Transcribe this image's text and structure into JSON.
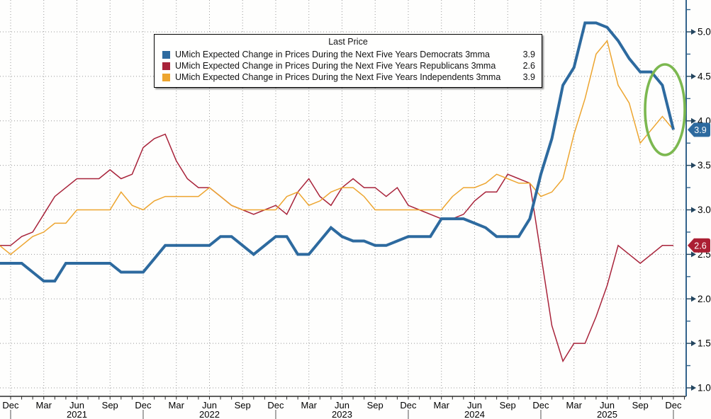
{
  "chart_data": {
    "type": "line",
    "legend_title": "Last Price",
    "months": [
      "Nov 2020",
      "Dec 2020",
      "Jan 2021",
      "Feb 2021",
      "Mar 2021",
      "Apr 2021",
      "May 2021",
      "Jun 2021",
      "Jul 2021",
      "Aug 2021",
      "Sep 2021",
      "Oct 2021",
      "Nov 2021",
      "Dec 2021",
      "Jan 2022",
      "Feb 2022",
      "Mar 2022",
      "Apr 2022",
      "May 2022",
      "Jun 2022",
      "Jul 2022",
      "Aug 2022",
      "Sep 2022",
      "Oct 2022",
      "Nov 2022",
      "Dec 2022",
      "Jan 2023",
      "Feb 2023",
      "Mar 2023",
      "Apr 2023",
      "May 2023",
      "Jun 2023",
      "Jul 2023",
      "Aug 2023",
      "Sep 2023",
      "Oct 2023",
      "Nov 2023",
      "Dec 2023",
      "Jan 2024",
      "Feb 2024",
      "Mar 2024",
      "Apr 2024",
      "May 2024",
      "Jun 2024",
      "Jul 2024",
      "Aug 2024",
      "Sep 2024",
      "Oct 2024",
      "Nov 2024",
      "Dec 2024",
      "Jan 2025",
      "Feb 2025",
      "Mar 2025",
      "Apr 2025",
      "May 2025",
      "Jun 2025",
      "Jul 2025",
      "Aug 2025",
      "Sep 2025",
      "Oct 2025",
      "Nov 2025",
      "Dec 2025"
    ],
    "series": [
      {
        "name": "UMich Expected Change in Prices During the Next Five Years Democrats 3mma",
        "last_price": "3.9",
        "color": "#2d6a9f",
        "line_width": 4,
        "values": [
          2.4,
          2.4,
          2.4,
          2.3,
          2.2,
          2.2,
          2.4,
          2.4,
          2.4,
          2.4,
          2.4,
          2.3,
          2.3,
          2.3,
          2.45,
          2.6,
          2.6,
          2.6,
          2.6,
          2.6,
          2.7,
          2.7,
          2.6,
          2.5,
          2.6,
          2.7,
          2.7,
          2.5,
          2.5,
          2.65,
          2.8,
          2.7,
          2.65,
          2.65,
          2.6,
          2.6,
          2.65,
          2.7,
          2.7,
          2.7,
          2.9,
          2.9,
          2.9,
          2.85,
          2.8,
          2.7,
          2.7,
          2.7,
          2.9,
          3.4,
          3.8,
          4.4,
          4.6,
          5.1,
          5.1,
          5.05,
          4.9,
          4.7,
          4.55,
          4.55,
          4.4,
          3.9
        ]
      },
      {
        "name": "UMich Expected Change in Prices During the Next Five Years Republicans 3mma",
        "last_price": "2.6",
        "color": "#a8233a",
        "line_width": 1.5,
        "values": [
          2.6,
          2.6,
          2.7,
          2.75,
          2.95,
          3.15,
          3.25,
          3.35,
          3.35,
          3.35,
          3.45,
          3.35,
          3.4,
          3.7,
          3.8,
          3.85,
          3.55,
          3.35,
          3.25,
          3.25,
          3.15,
          3.05,
          3.0,
          2.95,
          3.0,
          3.05,
          2.95,
          3.2,
          3.35,
          3.15,
          3.05,
          3.25,
          3.35,
          3.25,
          3.25,
          3.15,
          3.25,
          3.05,
          3.0,
          2.95,
          2.9,
          2.9,
          2.95,
          3.1,
          3.2,
          3.2,
          3.4,
          3.35,
          3.3,
          2.5,
          1.7,
          1.3,
          1.5,
          1.5,
          1.8,
          2.15,
          2.6,
          2.5,
          2.4,
          2.5,
          2.6,
          2.6
        ]
      },
      {
        "name": "UMich Expected Change in Prices During the Next Five Years Independents 3mma",
        "last_price": "3.9",
        "color": "#eda52f",
        "line_width": 1.5,
        "values": [
          2.6,
          2.5,
          2.6,
          2.7,
          2.75,
          2.85,
          2.85,
          3.0,
          3.0,
          3.0,
          3.0,
          3.2,
          3.05,
          3.0,
          3.1,
          3.15,
          3.15,
          3.15,
          3.15,
          3.25,
          3.15,
          3.05,
          3.0,
          3.0,
          3.0,
          3.0,
          3.15,
          3.2,
          3.05,
          3.1,
          3.2,
          3.25,
          3.25,
          3.15,
          3.0,
          3.0,
          3.0,
          3.0,
          3.0,
          3.0,
          3.0,
          3.15,
          3.25,
          3.25,
          3.3,
          3.4,
          3.35,
          3.3,
          3.3,
          3.15,
          3.2,
          3.35,
          3.85,
          4.25,
          4.75,
          4.9,
          4.4,
          4.2,
          3.75,
          3.9,
          4.05,
          3.9
        ]
      }
    ],
    "y_axis": {
      "side": "right",
      "ticks": [
        "1.0",
        "1.5",
        "2.0",
        "2.5",
        "3.0",
        "3.5",
        "4.0",
        "4.5",
        "5.0"
      ],
      "minor_step": 0.25,
      "ylim": [
        1.0,
        5.45
      ],
      "grid": "dotted"
    },
    "x_axis": {
      "quarter_labels": [
        "Dec",
        "Mar",
        "Jun",
        "Sep"
      ],
      "year_labels": [
        "2021",
        "2022",
        "2023",
        "2024",
        "2025"
      ],
      "range": "Dec 2020 - Dec 2025"
    },
    "badges": [
      {
        "value": "3.9",
        "anchor": 3.9,
        "color": "#2d6a9f",
        "text_color": "#ffffff"
      },
      {
        "value": "2.6",
        "anchor": 2.6,
        "color": "#ab1f33",
        "text_color": "#ffffff"
      }
    ],
    "annotation": {
      "shape": "ellipse",
      "color": "#7cb850",
      "highlights": "Dec 2025 decline in Democrats / Independents series"
    },
    "colors": {
      "grid": "#999999",
      "x_axis_line": "#2b2b2b",
      "y_axis_line": "#33638b",
      "tick_arrow": "#23455f",
      "label_text": "#000000"
    }
  }
}
